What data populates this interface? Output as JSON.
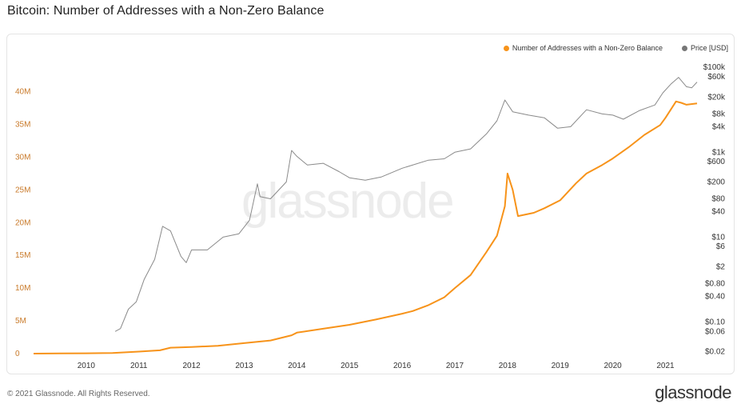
{
  "header": {
    "title": "Bitcoin: Number of Addresses with a Non-Zero Balance"
  },
  "footer": {
    "copyright": "© 2021 Glassnode. All Rights Reserved.",
    "brand": "glassnode"
  },
  "watermark": "glassnode",
  "colors": {
    "addresses": "#f7931a",
    "price": "#8a8a8a",
    "left_axis": "#c97a2a",
    "right_axis": "#333333"
  },
  "legend": [
    {
      "name": "Number of Addresses with a Non-Zero Balance",
      "color": "#f7931a"
    },
    {
      "name": "Price [USD]",
      "color": "#777777"
    }
  ],
  "chart_data": {
    "type": "line",
    "title": "Bitcoin: Number of Addresses with a Non-Zero Balance",
    "x_axis": {
      "ticks": [
        "2010",
        "2011",
        "2012",
        "2013",
        "2014",
        "2015",
        "2016",
        "2017",
        "2018",
        "2019",
        "2020",
        "2021"
      ],
      "range": [
        2009.0,
        2021.6
      ]
    },
    "left_axis": {
      "ticks": [
        0,
        5,
        10,
        15,
        20,
        25,
        30,
        35,
        40
      ],
      "tick_labels": [
        "0",
        "5M",
        "10M",
        "15M",
        "20M",
        "25M",
        "30M",
        "35M",
        "40M"
      ],
      "range": [
        0,
        43
      ]
    },
    "right_axis": {
      "scale": "log",
      "tick_values": [
        0.02,
        0.06,
        0.1,
        0.4,
        0.8,
        2,
        6,
        10,
        40,
        80,
        200,
        600,
        1000,
        4000,
        8000,
        20000,
        60000,
        100000
      ],
      "tick_labels": [
        "$0.02",
        "$0.06",
        "$0.10",
        "$0.40",
        "$0.80",
        "$2",
        "$6",
        "$10",
        "$40",
        "$80",
        "$200",
        "$600",
        "$1k",
        "$4k",
        "$8k",
        "$20k",
        "$60k",
        "$100k"
      ]
    },
    "grid": false,
    "legend_position": "top-right",
    "series": [
      {
        "name": "Number of Addresses with a Non-Zero Balance",
        "axis": "left",
        "unit": "M",
        "x": [
          2009.0,
          2009.5,
          2010.0,
          2010.5,
          2011.0,
          2011.4,
          2011.6,
          2012.0,
          2012.5,
          2013.0,
          2013.5,
          2013.9,
          2014.0,
          2014.5,
          2015.0,
          2015.5,
          2016.0,
          2016.2,
          2016.5,
          2016.8,
          2017.0,
          2017.3,
          2017.6,
          2017.8,
          2017.95,
          2018.0,
          2018.1,
          2018.2,
          2018.5,
          2018.7,
          2019.0,
          2019.3,
          2019.5,
          2019.8,
          2020.0,
          2020.3,
          2020.6,
          2020.9,
          2021.0,
          2021.2,
          2021.3,
          2021.4,
          2021.6
        ],
        "values": [
          0.0,
          0.02,
          0.05,
          0.1,
          0.3,
          0.5,
          0.9,
          1.0,
          1.2,
          1.6,
          2.0,
          2.8,
          3.2,
          3.8,
          4.4,
          5.2,
          6.1,
          6.5,
          7.4,
          8.6,
          10.0,
          12.0,
          15.5,
          18.0,
          22.5,
          27.5,
          25.0,
          21.0,
          21.5,
          22.2,
          23.4,
          26.0,
          27.5,
          28.8,
          29.8,
          31.5,
          33.4,
          34.9,
          36.0,
          38.5,
          38.3,
          38.0,
          38.2
        ]
      },
      {
        "name": "Price [USD]",
        "axis": "right",
        "unit": "USD",
        "x": [
          2010.55,
          2010.65,
          2010.8,
          2010.95,
          2011.1,
          2011.3,
          2011.45,
          2011.6,
          2011.8,
          2011.9,
          2012.0,
          2012.3,
          2012.6,
          2012.9,
          2013.1,
          2013.25,
          2013.3,
          2013.5,
          2013.8,
          2013.9,
          2014.0,
          2014.2,
          2014.5,
          2014.8,
          2015.0,
          2015.3,
          2015.6,
          2016.0,
          2016.5,
          2016.8,
          2017.0,
          2017.3,
          2017.6,
          2017.8,
          2017.95,
          2018.1,
          2018.4,
          2018.7,
          2018.95,
          2019.2,
          2019.5,
          2019.8,
          2020.0,
          2020.2,
          2020.5,
          2020.8,
          2020.95,
          2021.1,
          2021.25,
          2021.4,
          2021.5,
          2021.6
        ],
        "values": [
          0.06,
          0.07,
          0.2,
          0.3,
          1.0,
          3.0,
          18,
          14,
          3.5,
          2.5,
          5,
          5,
          10,
          12,
          25,
          180,
          90,
          80,
          200,
          1100,
          800,
          500,
          550,
          350,
          250,
          220,
          260,
          420,
          650,
          700,
          1000,
          1200,
          2700,
          5500,
          17000,
          9000,
          7500,
          6500,
          3700,
          4000,
          10000,
          8000,
          7500,
          6000,
          9500,
          13000,
          25000,
          40000,
          58000,
          35000,
          33000,
          45000
        ]
      }
    ]
  }
}
